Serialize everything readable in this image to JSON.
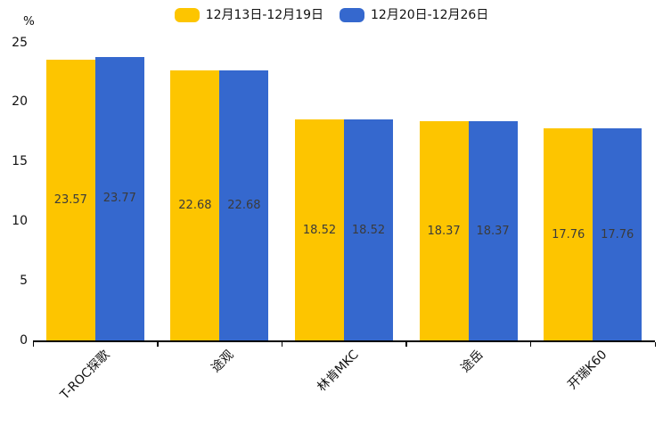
{
  "chart_data": {
    "type": "bar",
    "title": "",
    "y_unit": "%",
    "categories": [
      "T-ROC探歌",
      "途观",
      "林肯MKC",
      "途岳",
      "开瑞K60"
    ],
    "series": [
      {
        "name": "12月13日-12月19日",
        "color": "#FDC500",
        "values": [
          23.57,
          22.68,
          18.52,
          18.37,
          17.76
        ]
      },
      {
        "name": "12月20日-12月26日",
        "color": "#3568CE",
        "values": [
          23.77,
          22.68,
          18.52,
          18.37,
          17.76
        ]
      }
    ],
    "ylim": [
      0,
      25
    ],
    "yticks": [
      0,
      5,
      10,
      15,
      20,
      25
    ],
    "grid": false,
    "legend_position": "top-center",
    "value_label_position": "inside-middle",
    "value_label_color": "#3b3b3b",
    "axis_color": "#000000"
  }
}
